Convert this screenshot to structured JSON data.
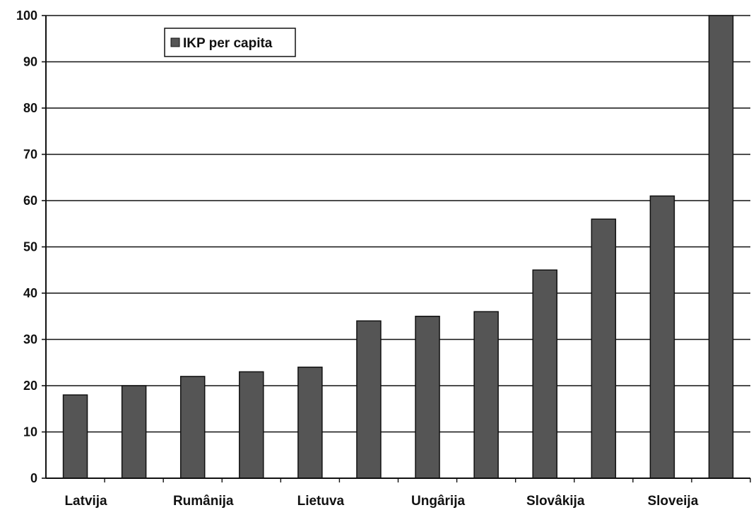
{
  "chart_data": {
    "type": "bar",
    "title": "",
    "xlabel": "",
    "ylabel": "",
    "categories": [
      "Latvija",
      "",
      "Rumânija",
      "",
      "Lietuva",
      "",
      "Ungârija",
      "",
      "Slovâkija",
      "",
      "Sloveija",
      ""
    ],
    "series": [
      {
        "name": "IKP per capita",
        "values": [
          18,
          20,
          22,
          23,
          24,
          34,
          35,
          36,
          45,
          56,
          61,
          100
        ]
      }
    ],
    "ylim": [
      0,
      100
    ],
    "yticks": [
      0,
      10,
      20,
      30,
      40,
      50,
      60,
      70,
      80,
      90,
      100
    ],
    "grid": true,
    "legend_position": "top-left",
    "colors": {
      "bar": "#555555",
      "bar_stroke": "#111111",
      "grid": "#111111"
    }
  }
}
